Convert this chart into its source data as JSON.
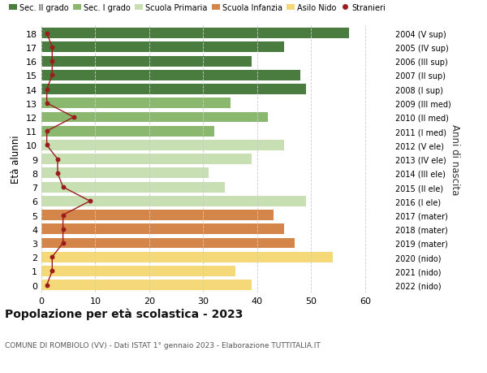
{
  "ages": [
    18,
    17,
    16,
    15,
    14,
    13,
    12,
    11,
    10,
    9,
    8,
    7,
    6,
    5,
    4,
    3,
    2,
    1,
    0
  ],
  "values": [
    57,
    45,
    39,
    48,
    49,
    35,
    42,
    32,
    45,
    39,
    31,
    34,
    49,
    43,
    45,
    47,
    54,
    36,
    39
  ],
  "bar_colors": [
    "#4a7c3f",
    "#4a7c3f",
    "#4a7c3f",
    "#4a7c3f",
    "#4a7c3f",
    "#8ab86e",
    "#8ab86e",
    "#8ab86e",
    "#c8deb3",
    "#c8deb3",
    "#c8deb3",
    "#c8deb3",
    "#c8deb3",
    "#d4854a",
    "#d4854a",
    "#d4854a",
    "#f5d978",
    "#f5d978",
    "#f5d978"
  ],
  "stranieri": [
    1,
    2,
    2,
    2,
    1,
    1,
    6,
    1,
    1,
    3,
    3,
    4,
    9,
    4,
    4,
    4,
    2,
    2,
    1
  ],
  "right_labels": [
    "2004 (V sup)",
    "2005 (IV sup)",
    "2006 (III sup)",
    "2007 (II sup)",
    "2008 (I sup)",
    "2009 (III med)",
    "2010 (II med)",
    "2011 (I med)",
    "2012 (V ele)",
    "2013 (IV ele)",
    "2014 (III ele)",
    "2015 (II ele)",
    "2016 (I ele)",
    "2017 (mater)",
    "2018 (mater)",
    "2019 (mater)",
    "2020 (nido)",
    "2021 (nido)",
    "2022 (nido)"
  ],
  "legend_labels": [
    "Sec. II grado",
    "Sec. I grado",
    "Scuola Primaria",
    "Scuola Infanzia",
    "Asilo Nido",
    "Stranieri"
  ],
  "legend_colors": [
    "#4a7c3f",
    "#8ab86e",
    "#c8deb3",
    "#d4854a",
    "#f5d978",
    "#9b1c1c"
  ],
  "title": "Popolazione per età scolastica - 2023",
  "subtitle": "COMUNE DI ROMBIOLO (VV) - Dati ISTAT 1° gennaio 2023 - Elaborazione TUTTITALIA.IT",
  "ylabel": "Età alunni",
  "right_ylabel": "Anni di nascita",
  "xlim": [
    0,
    65
  ],
  "xticks": [
    0,
    10,
    20,
    30,
    40,
    50,
    60
  ],
  "bar_height": 0.75,
  "stranieri_color": "#9b1c1c",
  "background_color": "#ffffff",
  "grid_color": "#cccccc"
}
